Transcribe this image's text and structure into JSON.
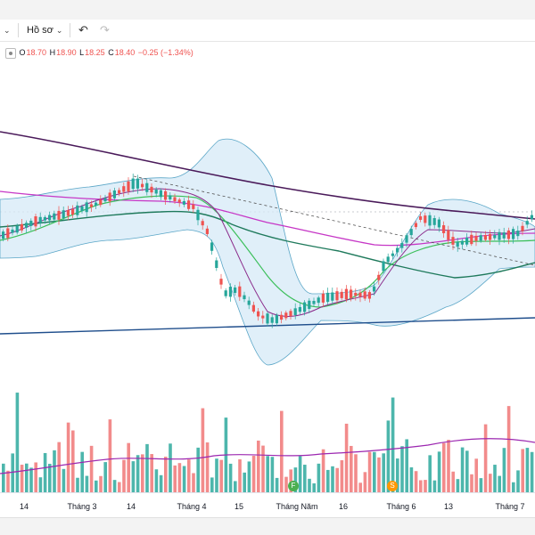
{
  "toolbar": {
    "profile_label": "Hồ sơ",
    "undo_icon": "undo-icon",
    "redo_icon": "redo-icon"
  },
  "legend": {
    "o_label": "O",
    "o_value": "18.70",
    "h_label": "H",
    "h_value": "18.90",
    "l_label": "L",
    "l_value": "18.25",
    "c_label": "C",
    "c_value": "18.40",
    "change": "−0.25 (−1.34%)"
  },
  "chart_data": {
    "type": "candlestick",
    "x_ticks": [
      "14",
      "Tháng 3",
      "14",
      "Tháng 4",
      "15",
      "Tháng Năm",
      "16",
      "Tháng 6",
      "13",
      "Tháng 7"
    ],
    "markers": [
      {
        "label": "F",
        "near_tick": "Tháng Năm",
        "color": "#4caf50"
      },
      {
        "label": "S",
        "near_tick": "Tháng 6",
        "color": "#ff9800"
      }
    ],
    "last_ohlc": {
      "open": 18.7,
      "high": 18.9,
      "low": 18.25,
      "close": 18.4
    },
    "colors": {
      "up": "#26a69a",
      "down": "#ef5350",
      "bb_fill": "#d6eaf7",
      "bb_line": "#5aa6c7",
      "ma_dark": "#4a1a5a",
      "ma_magenta": "#c637c6",
      "ma_green": "#3bbf5a",
      "ma_teal": "#1f7a5c",
      "trend_blue": "#1f4e8c"
    }
  }
}
